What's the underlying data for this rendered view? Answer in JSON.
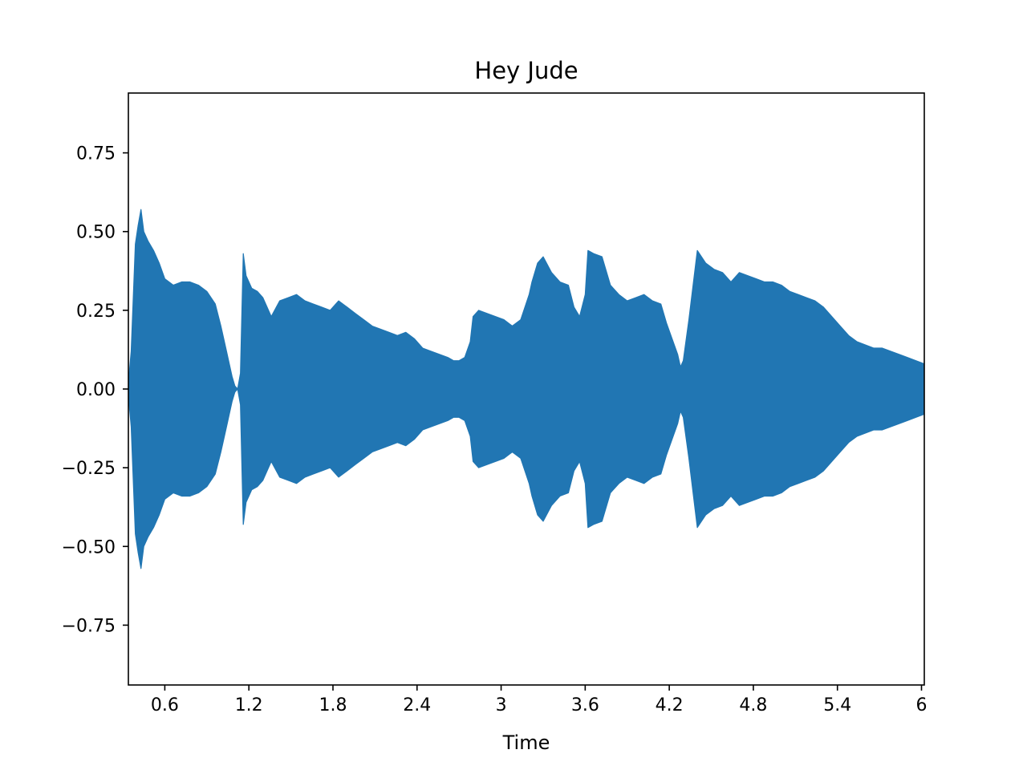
{
  "chart_data": {
    "type": "area",
    "title": "Hey Jude",
    "xlabel": "Time",
    "ylabel": "",
    "xlim": [
      0.34,
      6.02
    ],
    "ylim": [
      -0.94,
      0.94
    ],
    "x_ticks": [
      0.6,
      1.2,
      1.8,
      2.4,
      3,
      3.6,
      4.2,
      4.8,
      5.4,
      6
    ],
    "x_tick_labels": [
      "0.6",
      "1.2",
      "1.8",
      "2.4",
      "3",
      "3.6",
      "4.2",
      "4.8",
      "5.4",
      "6"
    ],
    "y_ticks": [
      0.75,
      0.5,
      0.25,
      0.0,
      -0.25,
      -0.5,
      -0.75
    ],
    "y_tick_labels": [
      "0.75",
      "0.50",
      "0.25",
      "0.00",
      "−0.25",
      "−0.50",
      "−0.75"
    ],
    "grid": false,
    "color": "#2176b3",
    "series": [
      {
        "kind": "waveform-envelope",
        "x": [
          0.34,
          0.36,
          0.39,
          0.41,
          0.43,
          0.45,
          0.48,
          0.52,
          0.56,
          0.6,
          0.66,
          0.72,
          0.78,
          0.84,
          0.9,
          0.96,
          1.0,
          1.04,
          1.08,
          1.1,
          1.12,
          1.14,
          1.16,
          1.18,
          1.2,
          1.22,
          1.26,
          1.3,
          1.36,
          1.42,
          1.48,
          1.54,
          1.6,
          1.66,
          1.72,
          1.78,
          1.84,
          1.9,
          1.96,
          2.02,
          2.08,
          2.14,
          2.2,
          2.26,
          2.32,
          2.38,
          2.44,
          2.5,
          2.56,
          2.62,
          2.66,
          2.7,
          2.74,
          2.78,
          2.8,
          2.84,
          2.9,
          2.96,
          3.02,
          3.08,
          3.14,
          3.2,
          3.22,
          3.26,
          3.3,
          3.36,
          3.42,
          3.48,
          3.52,
          3.56,
          3.6,
          3.62,
          3.66,
          3.72,
          3.78,
          3.84,
          3.9,
          3.96,
          4.02,
          4.08,
          4.14,
          4.18,
          4.22,
          4.26,
          4.28,
          4.3,
          4.34,
          4.4,
          4.46,
          4.52,
          4.58,
          4.64,
          4.7,
          4.76,
          4.82,
          4.88,
          4.94,
          5.0,
          5.06,
          5.12,
          5.18,
          5.24,
          5.3,
          5.36,
          5.42,
          5.48,
          5.54,
          5.6,
          5.66,
          5.72,
          5.78,
          5.84,
          5.9,
          5.96,
          6.02
        ],
        "upper": [
          0.02,
          0.12,
          0.46,
          0.52,
          0.57,
          0.5,
          0.47,
          0.44,
          0.4,
          0.35,
          0.33,
          0.34,
          0.34,
          0.33,
          0.31,
          0.27,
          0.2,
          0.12,
          0.04,
          0.01,
          0.0,
          0.05,
          0.43,
          0.36,
          0.34,
          0.32,
          0.31,
          0.29,
          0.23,
          0.28,
          0.29,
          0.3,
          0.28,
          0.27,
          0.26,
          0.25,
          0.28,
          0.26,
          0.24,
          0.22,
          0.2,
          0.19,
          0.18,
          0.17,
          0.18,
          0.16,
          0.13,
          0.12,
          0.11,
          0.1,
          0.09,
          0.09,
          0.1,
          0.15,
          0.23,
          0.25,
          0.24,
          0.23,
          0.22,
          0.2,
          0.22,
          0.3,
          0.34,
          0.4,
          0.42,
          0.37,
          0.34,
          0.33,
          0.26,
          0.23,
          0.3,
          0.44,
          0.43,
          0.42,
          0.33,
          0.3,
          0.28,
          0.29,
          0.3,
          0.28,
          0.27,
          0.21,
          0.16,
          0.11,
          0.07,
          0.09,
          0.22,
          0.44,
          0.4,
          0.38,
          0.37,
          0.34,
          0.37,
          0.36,
          0.35,
          0.34,
          0.34,
          0.33,
          0.31,
          0.3,
          0.29,
          0.28,
          0.26,
          0.23,
          0.2,
          0.17,
          0.15,
          0.14,
          0.13,
          0.13,
          0.12,
          0.11,
          0.1,
          0.09,
          0.08
        ],
        "lower": [
          -0.02,
          -0.12,
          -0.46,
          -0.52,
          -0.57,
          -0.5,
          -0.47,
          -0.44,
          -0.4,
          -0.35,
          -0.33,
          -0.34,
          -0.34,
          -0.33,
          -0.31,
          -0.27,
          -0.2,
          -0.12,
          -0.04,
          -0.01,
          -0.0,
          -0.05,
          -0.43,
          -0.36,
          -0.34,
          -0.32,
          -0.31,
          -0.29,
          -0.23,
          -0.28,
          -0.29,
          -0.3,
          -0.28,
          -0.27,
          -0.26,
          -0.25,
          -0.28,
          -0.26,
          -0.24,
          -0.22,
          -0.2,
          -0.19,
          -0.18,
          -0.17,
          -0.18,
          -0.16,
          -0.13,
          -0.12,
          -0.11,
          -0.1,
          -0.09,
          -0.09,
          -0.1,
          -0.15,
          -0.23,
          -0.25,
          -0.24,
          -0.23,
          -0.22,
          -0.2,
          -0.22,
          -0.3,
          -0.34,
          -0.4,
          -0.42,
          -0.37,
          -0.34,
          -0.33,
          -0.26,
          -0.23,
          -0.3,
          -0.44,
          -0.43,
          -0.42,
          -0.33,
          -0.3,
          -0.28,
          -0.29,
          -0.3,
          -0.28,
          -0.27,
          -0.21,
          -0.16,
          -0.11,
          -0.07,
          -0.09,
          -0.22,
          -0.44,
          -0.4,
          -0.38,
          -0.37,
          -0.34,
          -0.37,
          -0.36,
          -0.35,
          -0.34,
          -0.34,
          -0.33,
          -0.31,
          -0.3,
          -0.29,
          -0.28,
          -0.26,
          -0.23,
          -0.2,
          -0.17,
          -0.15,
          -0.14,
          -0.13,
          -0.13,
          -0.12,
          -0.11,
          -0.1,
          -0.09,
          -0.08
        ]
      }
    ]
  }
}
